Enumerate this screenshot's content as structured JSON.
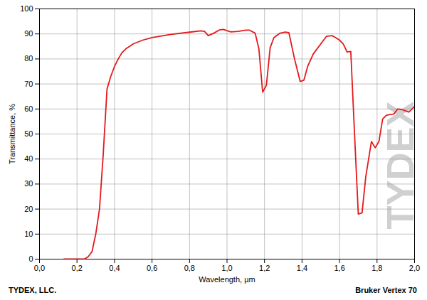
{
  "chart_data": {
    "type": "line",
    "x_label": "Wavelength, µm",
    "y_label": "Transmittance, %",
    "footer_left": "TYDEX, LLC.",
    "footer_right": "Bruker Vertex 70",
    "watermark": "TYDEX",
    "color": "#e31a1c",
    "grid": true,
    "xlim": [
      0.0,
      2.0
    ],
    "ylim": [
      0,
      100
    ],
    "xticks": [
      {
        "value": 0.0,
        "label": "0,0"
      },
      {
        "value": 0.2,
        "label": "0,2"
      },
      {
        "value": 0.4,
        "label": "0,4"
      },
      {
        "value": 0.6,
        "label": "0,6"
      },
      {
        "value": 0.8,
        "label": "0,8"
      },
      {
        "value": 1.0,
        "label": "1,0"
      },
      {
        "value": 1.2,
        "label": "1,2"
      },
      {
        "value": 1.4,
        "label": "1,4"
      },
      {
        "value": 1.6,
        "label": "1,6"
      },
      {
        "value": 1.8,
        "label": "1,8"
      },
      {
        "value": 2.0,
        "label": "2,0"
      }
    ],
    "yticks": [
      0,
      10,
      20,
      30,
      40,
      50,
      60,
      70,
      80,
      90,
      100
    ],
    "x": [
      0.13,
      0.2,
      0.24,
      0.26,
      0.28,
      0.3,
      0.32,
      0.34,
      0.36,
      0.38,
      0.4,
      0.42,
      0.44,
      0.46,
      0.5,
      0.55,
      0.6,
      0.7,
      0.8,
      0.86,
      0.88,
      0.9,
      0.93,
      0.96,
      0.98,
      1.0,
      1.02,
      1.06,
      1.1,
      1.12,
      1.15,
      1.17,
      1.19,
      1.21,
      1.23,
      1.25,
      1.28,
      1.31,
      1.33,
      1.36,
      1.39,
      1.41,
      1.43,
      1.46,
      1.5,
      1.53,
      1.56,
      1.58,
      1.6,
      1.62,
      1.64,
      1.66,
      1.68,
      1.7,
      1.72,
      1.74,
      1.77,
      1.79,
      1.81,
      1.83,
      1.85,
      1.87,
      1.89,
      1.91,
      1.93,
      1.97,
      2.0
    ],
    "values": [
      0,
      0,
      0,
      1,
      3,
      10,
      20,
      42,
      68,
      73,
      77,
      80,
      82.5,
      84,
      86,
      87.5,
      88.5,
      89.8,
      90.7,
      91.2,
      91,
      89.3,
      90.3,
      91.6,
      91.8,
      91.3,
      90.8,
      91,
      91.5,
      91.5,
      90.3,
      84,
      66.7,
      69.5,
      84.5,
      88.5,
      90.2,
      90.7,
      90.5,
      80,
      71,
      71.5,
      77,
      82,
      86,
      89,
      89.3,
      88.5,
      87.5,
      86,
      82.8,
      83,
      50,
      18,
      18.5,
      33,
      47,
      44.5,
      47,
      56,
      57.5,
      57.8,
      58,
      60,
      59.8,
      58.8,
      61
    ]
  }
}
